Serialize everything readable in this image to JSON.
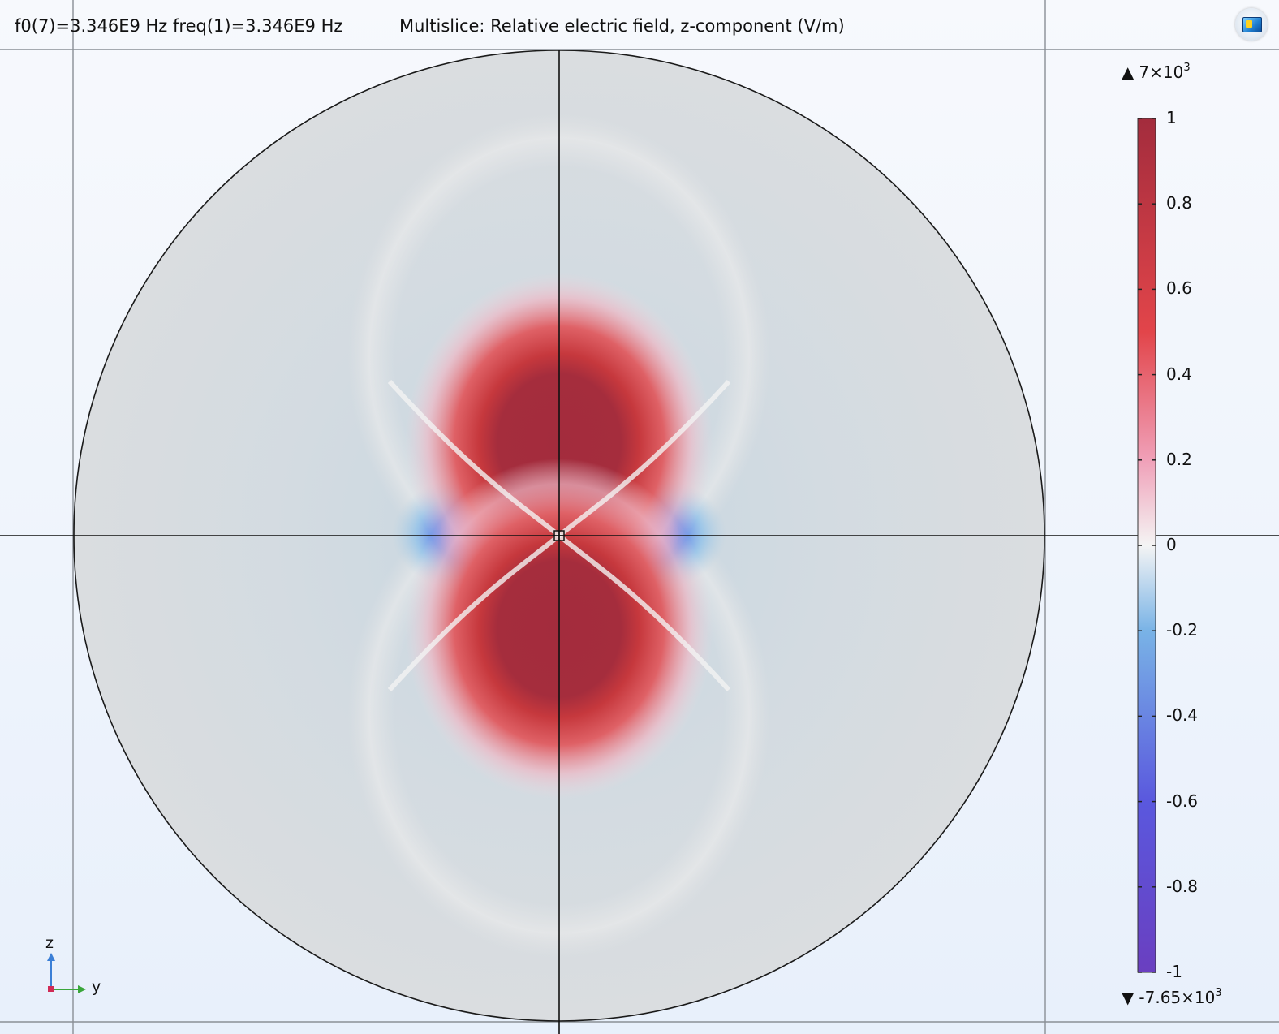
{
  "header": {
    "frequency_label": "f0(7)=3.346E9 Hz freq(1)=3.346E9 Hz",
    "plot_title": "Multislice: Relative electric field, z-component (V/m)"
  },
  "colorbar": {
    "max_prefix": "7×10",
    "max_exponent": "3",
    "min_prefix": "-7.65×10",
    "min_exponent": "3",
    "ticks": [
      "1",
      "0.8",
      "0.6",
      "0.4",
      "0.2",
      "0",
      "-0.2",
      "-0.4",
      "-0.6",
      "-0.8",
      "-1"
    ],
    "colors": [
      "#6a3fc0",
      "#5a58de",
      "#79b3e6",
      "#f4f4f4",
      "#ea6a6e",
      "#a32c3d"
    ]
  },
  "axes": {
    "vertical": "z",
    "horizontal": "y",
    "vertical_color": "#3b7fd6",
    "horizontal_color": "#3aa63a",
    "origin_color": "#d02a55"
  },
  "icons": {
    "view_button": "view-window-icon",
    "triangle_up": "triangle-up-icon",
    "triangle_down": "triangle-down-icon"
  },
  "field_colors": {
    "background": "#d9dde0",
    "positive": "#a32c3d",
    "negative": "#6b4fcf"
  }
}
